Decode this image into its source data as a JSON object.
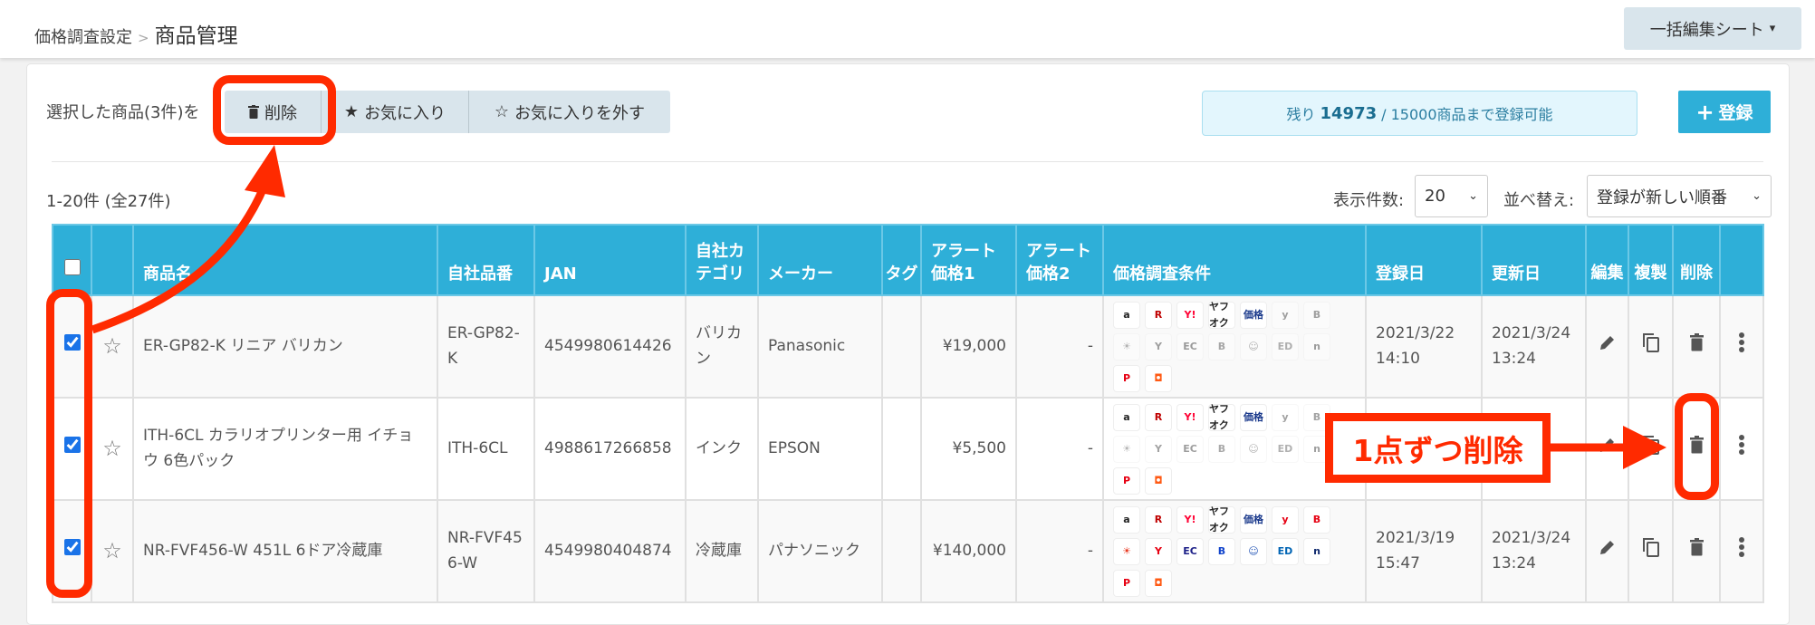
{
  "breadcrumb": {
    "parent": "価格調査設定",
    "separator": ">",
    "current": "商品管理"
  },
  "bulk_edit": {
    "label": "一括編集シート",
    "caret": "▾"
  },
  "actions": {
    "selected_label": "選択した商品(3件)を",
    "delete": "削除",
    "favorite": "お気に入り",
    "unfavorite": "お気に入りを外す",
    "icons": {
      "delete": "trash-icon",
      "favorite": "star-filled-icon",
      "unfavorite": "star-outline-icon"
    }
  },
  "quota": {
    "prefix": "残り",
    "remaining": "14973",
    "suffix": "/ 15000商品まで登録可能"
  },
  "register": {
    "icon": "+",
    "label": "登録"
  },
  "list": {
    "range": "1-20件 (全27件)",
    "per_page_label": "表示件数:",
    "per_page": "20",
    "sort_label": "並べ替え:",
    "sort": "登録が新しい順番"
  },
  "table": {
    "headers": [
      "",
      "",
      "商品名",
      "自社品番",
      "JAN",
      "自社カテゴリ",
      "メーカー",
      "タグ",
      "アラート価格1",
      "アラート価格2",
      "価格調査条件",
      "登録日",
      "更新日",
      "編集",
      "複製",
      "削除",
      ""
    ],
    "rows": [
      {
        "checked": true,
        "name": "ER-GP82-K リニア バリカン",
        "sku": "ER-GP82-K",
        "jan": "4549980614426",
        "category": "バリカン",
        "maker": "Panasonic",
        "tag": "",
        "alert1": "¥19,000",
        "alert2": "-",
        "registered": "2021/3/22 14:10",
        "updated": "2021/3/24 13:24",
        "sites_active": [
          1,
          1,
          1,
          1,
          1,
          0,
          0,
          0,
          0,
          0,
          0,
          0,
          0,
          0,
          1,
          1
        ]
      },
      {
        "checked": true,
        "name": "ITH-6CL カラリオプリンター用 イチョウ 6色パック",
        "sku": "ITH-6CL",
        "jan": "4988617266858",
        "category": "インク",
        "maker": "EPSON",
        "tag": "",
        "alert1": "¥5,500",
        "alert2": "-",
        "registered": "",
        "updated": "",
        "sites_active": [
          1,
          1,
          1,
          1,
          1,
          0,
          0,
          0,
          0,
          0,
          0,
          0,
          0,
          0,
          1,
          1
        ]
      },
      {
        "checked": true,
        "name": "NR-FVF456-W 451L 6ドア冷蔵庫",
        "sku": "NR-FVF456-W",
        "jan": "4549980404874",
        "category": "冷蔵庫",
        "maker": "パナソニック",
        "tag": "",
        "alert1": "¥140,000",
        "alert2": "-",
        "registered": "2021/3/19 15:47",
        "updated": "2021/3/24 13:24",
        "sites_active": [
          1,
          1,
          1,
          1,
          1,
          1,
          1,
          1,
          1,
          1,
          1,
          1,
          1,
          1,
          1,
          1
        ]
      }
    ],
    "sites": [
      {
        "name": "amazon",
        "glyph": "a",
        "color": "#222"
      },
      {
        "name": "rakuten",
        "glyph": "R",
        "color": "#bf0000"
      },
      {
        "name": "yahoo-shopping",
        "glyph": "Y!",
        "color": "#ff0033"
      },
      {
        "name": "yahoo-auction",
        "glyph": "ヤフオク",
        "color": "#222"
      },
      {
        "name": "kakaku",
        "glyph": "価格",
        "color": "#1b3a8c"
      },
      {
        "name": "yodobashi",
        "glyph": "y",
        "color": "#e60012"
      },
      {
        "name": "biccamera",
        "glyph": "B",
        "color": "#e60012"
      },
      {
        "name": "joshin",
        "glyph": "☀",
        "color": "#e83820"
      },
      {
        "name": "yamada",
        "glyph": "Y",
        "color": "#e60012"
      },
      {
        "name": "ec-current",
        "glyph": "EC",
        "color": "#1d2088"
      },
      {
        "name": "bic-b",
        "glyph": "B",
        "color": "#1144cc"
      },
      {
        "name": "ksdenki",
        "glyph": "☺",
        "color": "#2a5ab8"
      },
      {
        "name": "edion",
        "glyph": "ED",
        "color": "#0064b4"
      },
      {
        "name": "nojima",
        "glyph": "n",
        "color": "#102a6e"
      },
      {
        "name": "p-mall",
        "glyph": "P",
        "color": "#e60012"
      },
      {
        "name": "shop-bag",
        "glyph": "◘",
        "color": "#ff5a14"
      }
    ],
    "row_icons": {
      "edit": "pencil-icon",
      "copy": "copy-icon",
      "delete": "trash-icon",
      "more": "more-vertical-icon"
    }
  },
  "annotation": {
    "callout": "1点ずつ削除",
    "color": "#ff2a00"
  },
  "colors": {
    "header": "#2eafd8",
    "accent": "#2eafd8",
    "annotation": "#ff2a00"
  }
}
